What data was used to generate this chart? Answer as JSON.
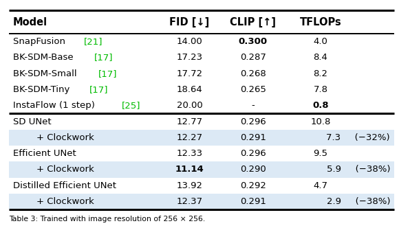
{
  "columns": [
    "Model",
    "FID [↓]",
    "CLIP [↑]",
    "TFLOPs"
  ],
  "rows": [
    {
      "model_parts": [
        [
          "SnapFusion ",
          "black"
        ],
        [
          "[21]",
          "#00bb00"
        ]
      ],
      "fid": "14.00",
      "clip": "0.300",
      "tflops": "4.0",
      "fid_bold": false,
      "clip_bold": true,
      "tflops_bold": false,
      "indent": false,
      "highlight": false,
      "section": 1
    },
    {
      "model_parts": [
        [
          "BK-SDM-Base ",
          "black"
        ],
        [
          "[17]",
          "#00bb00"
        ]
      ],
      "fid": "17.23",
      "clip": "0.287",
      "tflops": "8.4",
      "fid_bold": false,
      "clip_bold": false,
      "tflops_bold": false,
      "indent": false,
      "highlight": false,
      "section": 1
    },
    {
      "model_parts": [
        [
          "BK-SDM-Small ",
          "black"
        ],
        [
          "[17]",
          "#00bb00"
        ]
      ],
      "fid": "17.72",
      "clip": "0.268",
      "tflops": "8.2",
      "fid_bold": false,
      "clip_bold": false,
      "tflops_bold": false,
      "indent": false,
      "highlight": false,
      "section": 1
    },
    {
      "model_parts": [
        [
          "BK-SDM-Tiny ",
          "black"
        ],
        [
          "[17]",
          "#00bb00"
        ]
      ],
      "fid": "18.64",
      "clip": "0.265",
      "tflops": "7.8",
      "fid_bold": false,
      "clip_bold": false,
      "tflops_bold": false,
      "indent": false,
      "highlight": false,
      "section": 1
    },
    {
      "model_parts": [
        [
          "InstaFlow (1 step) ",
          "black"
        ],
        [
          "[25]",
          "#00bb00"
        ]
      ],
      "fid": "20.00",
      "clip": "-",
      "tflops": "0.8",
      "fid_bold": false,
      "clip_bold": false,
      "tflops_bold": true,
      "indent": false,
      "highlight": false,
      "section": 1
    },
    {
      "model_parts": [
        [
          "SD UNet",
          "black"
        ]
      ],
      "fid": "12.77",
      "clip": "0.296",
      "tflops": "10.8",
      "fid_bold": false,
      "clip_bold": false,
      "tflops_bold": false,
      "indent": false,
      "highlight": false,
      "section": 2
    },
    {
      "model_parts": [
        [
          "    + Clockwork",
          "black"
        ]
      ],
      "fid": "12.27",
      "clip": "0.291",
      "tflops": "7.3 (−32%)",
      "fid_bold": false,
      "clip_bold": false,
      "tflops_bold": false,
      "indent": true,
      "highlight": true,
      "section": 2
    },
    {
      "model_parts": [
        [
          "Efficient UNet",
          "black"
        ]
      ],
      "fid": "12.33",
      "clip": "0.296",
      "tflops": "9.5",
      "fid_bold": false,
      "clip_bold": false,
      "tflops_bold": false,
      "indent": false,
      "highlight": false,
      "section": 2
    },
    {
      "model_parts": [
        [
          "    + Clockwork",
          "black"
        ]
      ],
      "fid": "11.14",
      "clip": "0.290",
      "tflops": "5.9 (−38%)",
      "fid_bold": true,
      "clip_bold": false,
      "tflops_bold": false,
      "indent": true,
      "highlight": true,
      "section": 2
    },
    {
      "model_parts": [
        [
          "Distilled Efficient UNet",
          "black"
        ]
      ],
      "fid": "13.92",
      "clip": "0.292",
      "tflops": "4.7",
      "fid_bold": false,
      "clip_bold": false,
      "tflops_bold": false,
      "indent": false,
      "highlight": false,
      "section": 2
    },
    {
      "model_parts": [
        [
          "    + Clockwork",
          "black"
        ]
      ],
      "fid": "12.37",
      "clip": "0.291",
      "tflops": "2.9 (−38%)",
      "fid_bold": false,
      "clip_bold": false,
      "tflops_bold": false,
      "indent": true,
      "highlight": true,
      "section": 2
    }
  ],
  "highlight_color": "#dce9f5",
  "green_color": "#00bb00",
  "caption": "Table 3: Trained with image resolution of 256 × 256.",
  "font_size": 9.5,
  "header_font_size": 10.5,
  "figwidth": 5.8,
  "figheight": 3.48,
  "dpi": 100
}
